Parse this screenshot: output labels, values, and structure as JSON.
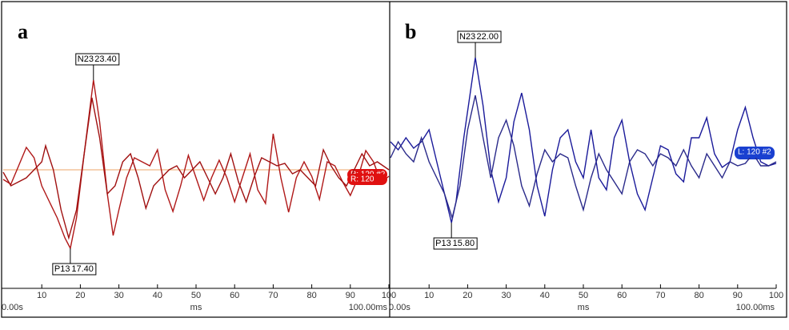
{
  "chart_data": [
    {
      "type": "line",
      "panel_label": "a",
      "xlim": [
        0,
        100
      ],
      "xlim_labels": [
        "0.00s",
        "100.00ms"
      ],
      "xlabel": "ms",
      "xticks": [
        10,
        20,
        30,
        40,
        50,
        60,
        70,
        80,
        90,
        100
      ],
      "ylim": [
        -14.8,
        20.8
      ],
      "zero_line_color": "#f4c49a",
      "series": [
        {
          "name": "R: 120 #2",
          "color": "#b01818",
          "tag_color": "#e01010",
          "x": [
            0,
            2,
            4,
            6,
            8,
            10,
            12,
            14,
            16,
            17.4,
            19,
            21,
            23.4,
            25,
            27,
            28.5,
            30,
            32,
            34,
            36,
            38,
            40,
            42,
            44,
            46,
            48,
            50,
            52,
            54,
            56,
            58,
            60,
            62,
            64,
            66,
            68,
            70,
            72,
            74,
            76,
            78,
            80,
            82,
            84,
            86,
            88,
            90,
            92,
            94,
            96,
            98,
            100
          ],
          "values": [
            -1.2,
            -1.8,
            0.5,
            2.8,
            1.5,
            -2,
            -4,
            -6,
            -8.5,
            -9.8,
            -6,
            2,
            11.2,
            6,
            -3,
            -8.2,
            -5,
            -1,
            1.5,
            1,
            0.5,
            2.5,
            -2.5,
            -5.2,
            -2,
            1.8,
            -1,
            -3.8,
            -1,
            1.2,
            -1,
            -4,
            -1,
            2,
            -2.5,
            -4.2,
            4.5,
            -1,
            -5.3,
            -1,
            1,
            -0.8,
            -3.7,
            1,
            0.5,
            -1.5,
            -3.2,
            -1,
            2.4,
            1,
            -1.6,
            -0.8
          ]
        },
        {
          "name": "R: 120",
          "color": "#a01010",
          "tag_color": "#e01010",
          "x": [
            0,
            2,
            4,
            6,
            8,
            10,
            11,
            13,
            15,
            17,
            19,
            21,
            23,
            25,
            27,
            29,
            31,
            33,
            35,
            37,
            39,
            41,
            43,
            45,
            47,
            49,
            51,
            53,
            55,
            57,
            59,
            61,
            63,
            65,
            67,
            69,
            71,
            73,
            75,
            77,
            79,
            81,
            83,
            85,
            87,
            89,
            91,
            93,
            95,
            97,
            100
          ],
          "values": [
            -0.3,
            -2,
            -1.5,
            -1,
            0,
            1,
            3,
            0,
            -5,
            -8.5,
            -5,
            2,
            9,
            4,
            -3,
            -2,
            1,
            2,
            -1,
            -4.8,
            -2,
            -1,
            0,
            0.5,
            -1,
            0,
            1,
            -1,
            -3,
            -1,
            2,
            -1.5,
            -4,
            -1,
            1.5,
            1,
            0.5,
            0.8,
            -0.5,
            0,
            -1,
            -2,
            2.5,
            0.5,
            -1,
            -2,
            0,
            2,
            0.5,
            1,
            0
          ]
        }
      ],
      "annotations": [
        {
          "label": "N23",
          "x": 23.4,
          "x_label": "23.40"
        },
        {
          "label": "P13",
          "x": 17.4,
          "x_label": "17.40"
        }
      ]
    },
    {
      "type": "line",
      "panel_label": "b",
      "xlim": [
        0,
        100
      ],
      "xlim_labels": [
        "0.00s",
        "100.00ms"
      ],
      "xlabel": "ms",
      "xticks": [
        10,
        20,
        30,
        40,
        50,
        60,
        70,
        80,
        90,
        100
      ],
      "ylim": [
        -14.8,
        20.8
      ],
      "series": [
        {
          "name": "L: 120",
          "color": "#1a1a9a",
          "tag_color": "#1a40d0",
          "x": [
            0,
            2,
            4,
            6,
            8,
            10,
            12,
            14,
            15.8,
            17,
            19,
            22,
            24,
            26,
            28,
            30,
            32,
            34,
            36,
            38,
            40,
            42,
            44,
            46,
            48,
            50,
            52,
            54,
            56,
            58,
            60,
            62,
            64,
            66,
            68,
            70,
            72,
            74,
            76,
            78,
            80,
            82,
            84,
            86,
            88,
            90,
            92,
            94,
            96,
            98,
            100
          ],
          "values": [
            3.5,
            2.5,
            4,
            2.7,
            3.5,
            5,
            1,
            -3,
            -6.6,
            -4,
            4,
            14,
            8,
            0,
            -4,
            -1,
            6,
            9.6,
            5,
            -2,
            -5.8,
            0,
            4,
            5,
            1,
            -1,
            5,
            -1,
            -2.5,
            4,
            6.2,
            1,
            -3,
            -5,
            -1,
            3,
            2.5,
            -0.5,
            -1.5,
            4,
            4,
            6.5,
            2,
            0.3,
            1,
            5,
            7.8,
            4,
            1,
            0.5,
            0.8
          ]
        },
        {
          "name": "L: 120 #2",
          "color": "#2a2a8a",
          "tag_color": "#1a40d0",
          "x": [
            0,
            2,
            4,
            6,
            8,
            10,
            12,
            14,
            16,
            18,
            20,
            22,
            24,
            26,
            28,
            30,
            32,
            34,
            36,
            38,
            40,
            42,
            44,
            46,
            48,
            50,
            52,
            54,
            56,
            58,
            60,
            62,
            64,
            66,
            68,
            70,
            72,
            74,
            76,
            78,
            80,
            82,
            84,
            86,
            88,
            90,
            92,
            94,
            96,
            98,
            100
          ],
          "values": [
            1.5,
            3.5,
            2,
            1,
            4,
            1,
            -1,
            -3,
            -6,
            -2,
            5,
            9.3,
            4,
            -1,
            4,
            6.2,
            3,
            -2,
            -4.5,
            -0.5,
            2.5,
            1,
            2,
            1.5,
            -2,
            -5,
            -1,
            2,
            0,
            -1.5,
            -3,
            1,
            2.5,
            2,
            0.5,
            2,
            1.5,
            0.5,
            2.5,
            0.5,
            -1,
            2,
            0.5,
            -1,
            1,
            0.5,
            0.8,
            2,
            0.5,
            0.5,
            1
          ]
        }
      ],
      "annotations": [
        {
          "label": "N23",
          "x": 22,
          "x_label": "22.00"
        },
        {
          "label": "P13",
          "x": 15.8,
          "x_label": "15.80"
        }
      ]
    }
  ]
}
